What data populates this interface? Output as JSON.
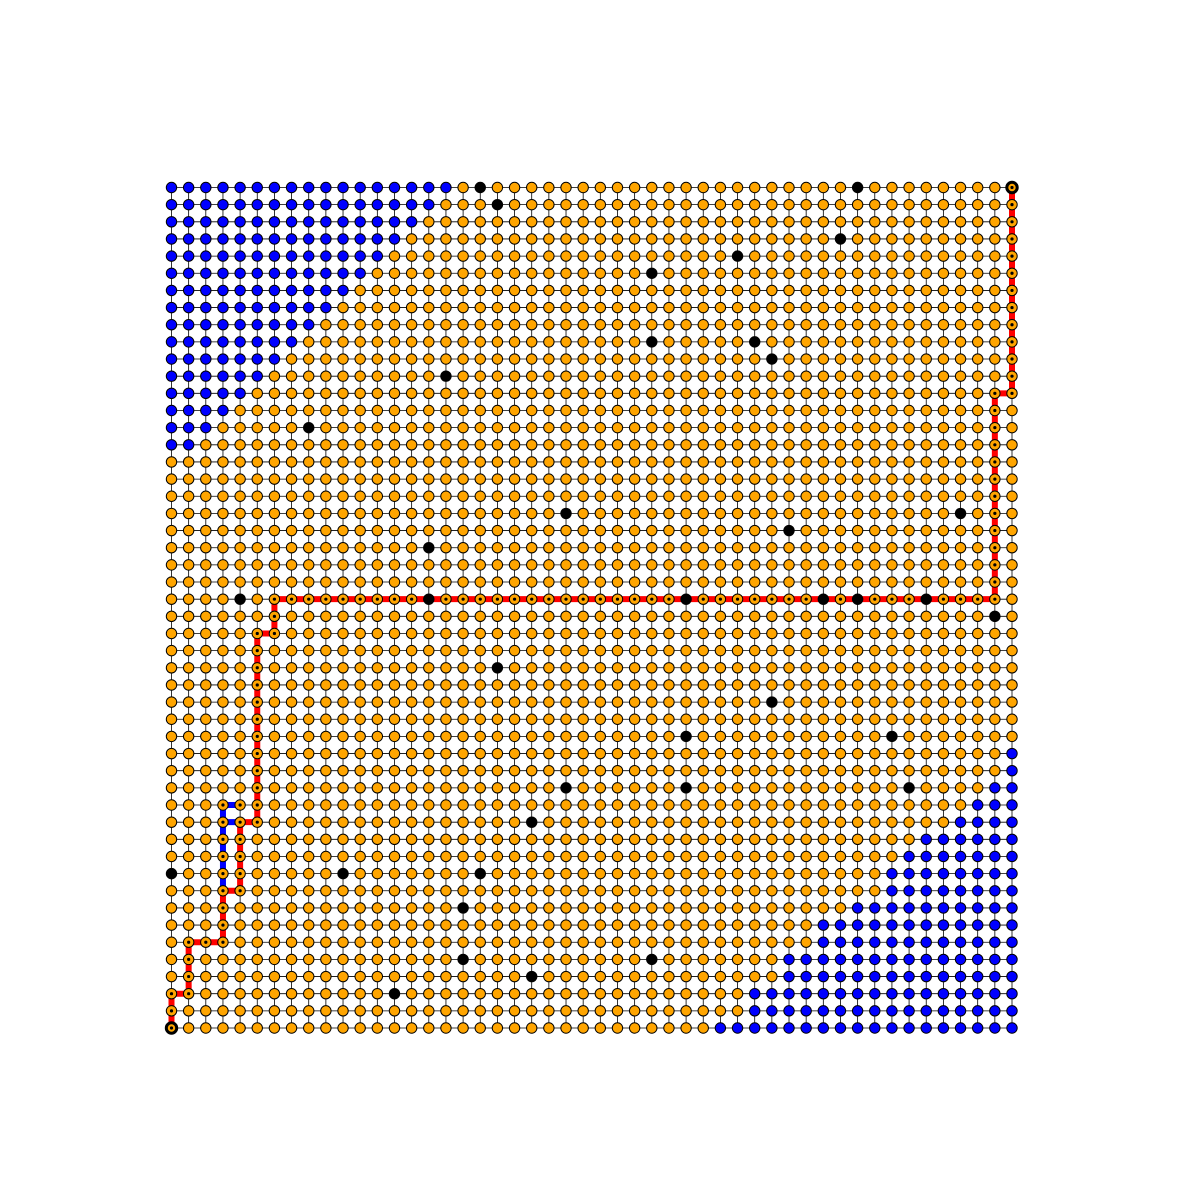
{
  "chart_data": {
    "type": "grid-graph",
    "grid": {
      "cols": 50,
      "rows": 50
    },
    "colors": {
      "background": "#ffffff",
      "edge": "#000000",
      "node_default": "#ffa500",
      "node_reached": "#0000ff",
      "node_wall": "#000000",
      "path": "#ff0000",
      "path_detour": "#0000ff"
    },
    "legend": null,
    "title": "",
    "start": [
      0,
      0
    ],
    "goal": [
      49,
      49
    ],
    "walls": [
      [
        18,
        49
      ],
      [
        40,
        49
      ],
      [
        19,
        48
      ],
      [
        39,
        46
      ],
      [
        33,
        45
      ],
      [
        28,
        44
      ],
      [
        28,
        40
      ],
      [
        34,
        40
      ],
      [
        35,
        39
      ],
      [
        16,
        38
      ],
      [
        8,
        35
      ],
      [
        23,
        30
      ],
      [
        46,
        30
      ],
      [
        36,
        29
      ],
      [
        15,
        28
      ],
      [
        4,
        25
      ],
      [
        15,
        25
      ],
      [
        30,
        25
      ],
      [
        38,
        25
      ],
      [
        40,
        25
      ],
      [
        44,
        25
      ],
      [
        48,
        24
      ],
      [
        19,
        21
      ],
      [
        35,
        19
      ],
      [
        30,
        17
      ],
      [
        42,
        17
      ],
      [
        30,
        14
      ],
      [
        23,
        14
      ],
      [
        21,
        12
      ],
      [
        43,
        14
      ],
      [
        0,
        9
      ],
      [
        10,
        9
      ],
      [
        18,
        9
      ],
      [
        17,
        7
      ],
      [
        17,
        4
      ],
      [
        13,
        2
      ],
      [
        28,
        4
      ],
      [
        21,
        3
      ]
    ],
    "path": [
      [
        0,
        0
      ],
      [
        0,
        1
      ],
      [
        0,
        2
      ],
      [
        1,
        2
      ],
      [
        1,
        3
      ],
      [
        1,
        4
      ],
      [
        1,
        5
      ],
      [
        2,
        5
      ],
      [
        3,
        5
      ],
      [
        3,
        6
      ],
      [
        3,
        7
      ],
      [
        3,
        8
      ],
      [
        4,
        8
      ],
      [
        4,
        9
      ],
      [
        4,
        10
      ],
      [
        4,
        11
      ],
      [
        4,
        12
      ],
      [
        5,
        12
      ],
      [
        5,
        13
      ],
      [
        5,
        14
      ],
      [
        5,
        15
      ],
      [
        5,
        16
      ],
      [
        5,
        17
      ],
      [
        5,
        18
      ],
      [
        5,
        19
      ],
      [
        5,
        20
      ],
      [
        5,
        21
      ],
      [
        5,
        22
      ],
      [
        5,
        23
      ],
      [
        6,
        23
      ],
      [
        6,
        24
      ],
      [
        6,
        25
      ],
      [
        7,
        25
      ],
      [
        8,
        25
      ],
      [
        9,
        25
      ],
      [
        10,
        25
      ],
      [
        11,
        25
      ],
      [
        12,
        25
      ],
      [
        13,
        25
      ],
      [
        14,
        25
      ],
      [
        15,
        25
      ],
      [
        16,
        25
      ],
      [
        17,
        25
      ],
      [
        18,
        25
      ],
      [
        19,
        25
      ],
      [
        20,
        25
      ],
      [
        21,
        25
      ],
      [
        22,
        25
      ],
      [
        23,
        25
      ],
      [
        24,
        25
      ],
      [
        25,
        25
      ],
      [
        26,
        25
      ],
      [
        27,
        25
      ],
      [
        28,
        25
      ],
      [
        29,
        25
      ],
      [
        30,
        25
      ],
      [
        31,
        25
      ],
      [
        32,
        25
      ],
      [
        33,
        25
      ],
      [
        34,
        25
      ],
      [
        35,
        25
      ],
      [
        36,
        25
      ],
      [
        37,
        25
      ],
      [
        38,
        25
      ],
      [
        39,
        25
      ],
      [
        40,
        25
      ],
      [
        41,
        25
      ],
      [
        42,
        25
      ],
      [
        43,
        25
      ],
      [
        44,
        25
      ],
      [
        45,
        25
      ],
      [
        46,
        25
      ],
      [
        47,
        25
      ],
      [
        48,
        25
      ],
      [
        48,
        26
      ],
      [
        48,
        27
      ],
      [
        48,
        28
      ],
      [
        48,
        29
      ],
      [
        48,
        30
      ],
      [
        48,
        31
      ],
      [
        48,
        32
      ],
      [
        48,
        33
      ],
      [
        48,
        34
      ],
      [
        48,
        35
      ],
      [
        48,
        36
      ],
      [
        48,
        37
      ],
      [
        49,
        37
      ],
      [
        49,
        38
      ],
      [
        49,
        39
      ],
      [
        49,
        40
      ],
      [
        49,
        41
      ],
      [
        49,
        42
      ],
      [
        49,
        43
      ],
      [
        49,
        44
      ],
      [
        49,
        45
      ],
      [
        49,
        46
      ],
      [
        49,
        47
      ],
      [
        49,
        48
      ],
      [
        49,
        49
      ]
    ],
    "detour": [
      [
        4,
        12
      ],
      [
        3,
        12
      ],
      [
        3,
        11
      ],
      [
        3,
        10
      ],
      [
        3,
        9
      ],
      [
        3,
        8
      ],
      [
        3,
        13
      ],
      [
        4,
        13
      ]
    ],
    "blue_regions": [
      {
        "corner": "top-left",
        "rows_from_top": [
          17,
          16,
          15,
          14,
          13,
          12,
          11,
          10,
          9,
          8,
          7,
          6,
          5,
          4,
          3,
          2
        ]
      },
      {
        "corner": "bottom-right",
        "rows_from_bottom": [
          18,
          16,
          16,
          14,
          14,
          12,
          12,
          10,
          8,
          8,
          7,
          6,
          4,
          3,
          2,
          1,
          1
        ]
      }
    ]
  }
}
